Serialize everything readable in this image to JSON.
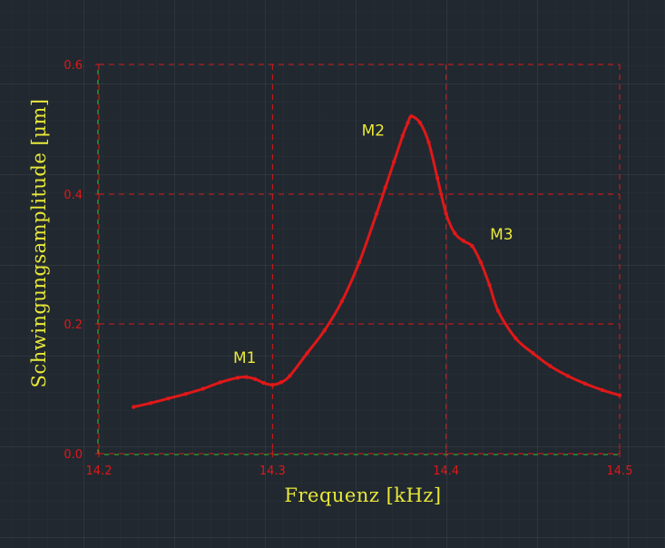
{
  "colors": {
    "background": "#212830",
    "frame": "#e01818",
    "grid": "#e01818",
    "curve": "#e01818",
    "tick_text": "#e01818",
    "label_text": "#e8e838",
    "axis_line": "#2ecc2e"
  },
  "chart_data": {
    "type": "line",
    "xlabel": "Frequenz [kHz]",
    "ylabel": "Schwingungsamplitude [μm]",
    "xlim": [
      14.2,
      14.5
    ],
    "ylim": [
      0.0,
      0.6
    ],
    "xticks": [
      14.2,
      14.3,
      14.4,
      14.5
    ],
    "xtick_labels": [
      "14.2",
      "14.3",
      "14.4",
      "14.5"
    ],
    "yticks": [
      0.0,
      0.2,
      0.4,
      0.6
    ],
    "ytick_labels": [
      "0.0",
      "0.2",
      "0.4",
      "0.6"
    ],
    "grid": true,
    "series": [
      {
        "x": [
          14.22,
          14.23,
          14.24,
          14.25,
          14.26,
          14.27,
          14.28,
          14.285,
          14.29,
          14.295,
          14.3,
          14.305,
          14.31,
          14.32,
          14.33,
          14.34,
          14.35,
          14.36,
          14.365,
          14.37,
          14.375,
          14.378,
          14.38,
          14.385,
          14.39,
          14.395,
          14.4,
          14.405,
          14.41,
          14.415,
          14.42,
          14.425,
          14.43,
          14.44,
          14.45,
          14.46,
          14.47,
          14.48,
          14.49,
          14.5
        ],
        "y": [
          0.072,
          0.078,
          0.085,
          0.092,
          0.1,
          0.11,
          0.117,
          0.118,
          0.115,
          0.109,
          0.106,
          0.11,
          0.12,
          0.155,
          0.19,
          0.235,
          0.295,
          0.37,
          0.41,
          0.45,
          0.49,
          0.51,
          0.52,
          0.51,
          0.48,
          0.425,
          0.37,
          0.34,
          0.328,
          0.32,
          0.295,
          0.26,
          0.22,
          0.178,
          0.155,
          0.135,
          0.12,
          0.108,
          0.098,
          0.09
        ]
      }
    ],
    "annotations": [
      {
        "text": "M1",
        "x": 14.284,
        "y": 0.14
      },
      {
        "text": "M2",
        "x": 14.358,
        "y": 0.49
      },
      {
        "text": "M3",
        "x": 14.432,
        "y": 0.33
      }
    ]
  }
}
